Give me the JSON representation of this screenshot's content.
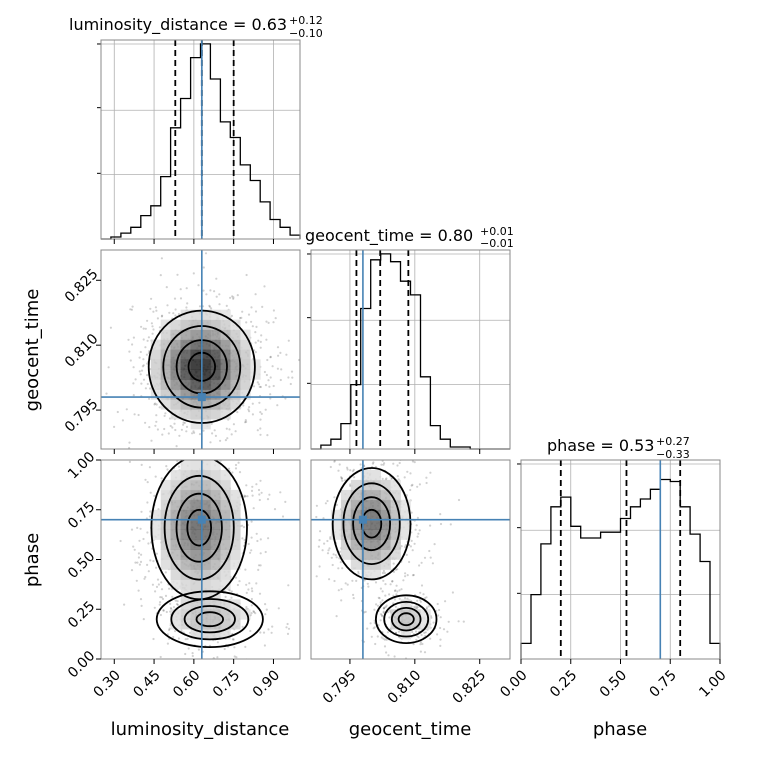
{
  "chart_data": {
    "type": "corner",
    "params": [
      "luminosity_distance",
      "geocent_time",
      "phase"
    ],
    "truths": [
      0.63,
      0.798,
      0.7
    ],
    "truth_color": "#4682b4",
    "grid": true,
    "ranges": [
      [
        0.25,
        1.0
      ],
      [
        0.786,
        0.832
      ],
      [
        0.0,
        1.0
      ]
    ],
    "ticks": [
      [
        "0.30",
        "0.45",
        "0.60",
        "0.75",
        "0.90"
      ],
      [
        "0.795",
        "0.810",
        "0.825"
      ],
      [
        "0.00",
        "0.25",
        "0.50",
        "0.75",
        "1.00"
      ]
    ],
    "tick_values": [
      [
        0.3,
        0.45,
        0.6,
        0.75,
        0.9
      ],
      [
        0.795,
        0.81,
        0.825
      ],
      [
        0.0,
        0.25,
        0.5,
        0.75,
        1.0
      ]
    ],
    "titles": [
      {
        "label": "luminosity_distance",
        "median": "0.63",
        "plus": "+0.12",
        "minus": "−0.10"
      },
      {
        "label": "geocent_time",
        "median": "0.80",
        "plus": "+0.01",
        "minus": "−0.01"
      },
      {
        "label": "phase",
        "median": "0.53",
        "plus": "+0.27",
        "minus": "−0.33"
      }
    ],
    "quantiles": [
      [
        0.53,
        0.63,
        0.75
      ],
      [
        0.7965,
        0.802,
        0.8085
      ],
      [
        0.2,
        0.53,
        0.8
      ]
    ],
    "histograms": [
      {
        "edges": [
          0.25,
          0.2875,
          0.325,
          0.3625,
          0.4,
          0.4375,
          0.475,
          0.5125,
          0.55,
          0.5875,
          0.625,
          0.6625,
          0.7,
          0.7375,
          0.775,
          0.8125,
          0.85,
          0.8875,
          0.925,
          0.9625,
          1.0
        ],
        "counts": [
          0.0,
          0.01,
          0.03,
          0.06,
          0.12,
          0.17,
          0.32,
          0.57,
          0.72,
          0.93,
          1.0,
          0.82,
          0.6,
          0.52,
          0.38,
          0.3,
          0.19,
          0.1,
          0.06,
          0.02
        ]
      },
      {
        "edges": [
          0.786,
          0.7883,
          0.7906,
          0.7929,
          0.7952,
          0.7975,
          0.7998,
          0.8021,
          0.8044,
          0.8067,
          0.809,
          0.8113,
          0.8136,
          0.8159,
          0.8182,
          0.8205,
          0.8228,
          0.8251,
          0.8274,
          0.8297,
          0.832
        ],
        "counts": [
          0.0,
          0.02,
          0.05,
          0.13,
          0.33,
          0.72,
          0.97,
          1.0,
          0.96,
          0.86,
          0.79,
          0.37,
          0.12,
          0.05,
          0.01,
          0.01,
          0.0,
          0.0,
          0.0,
          0.0
        ]
      },
      {
        "edges": [
          0.0,
          0.05,
          0.1,
          0.15,
          0.2,
          0.25,
          0.3,
          0.35,
          0.4,
          0.45,
          0.5,
          0.55,
          0.6,
          0.65,
          0.7,
          0.75,
          0.8,
          0.85,
          0.9,
          0.95,
          1.0
        ],
        "counts": [
          0.08,
          0.33,
          0.59,
          0.78,
          0.83,
          0.68,
          0.62,
          0.62,
          0.65,
          0.65,
          0.72,
          0.78,
          0.82,
          0.87,
          0.92,
          0.91,
          0.78,
          0.64,
          0.5,
          0.08
        ]
      }
    ],
    "hist_ylims": [
      1.0,
      1.0,
      1.0
    ]
  }
}
